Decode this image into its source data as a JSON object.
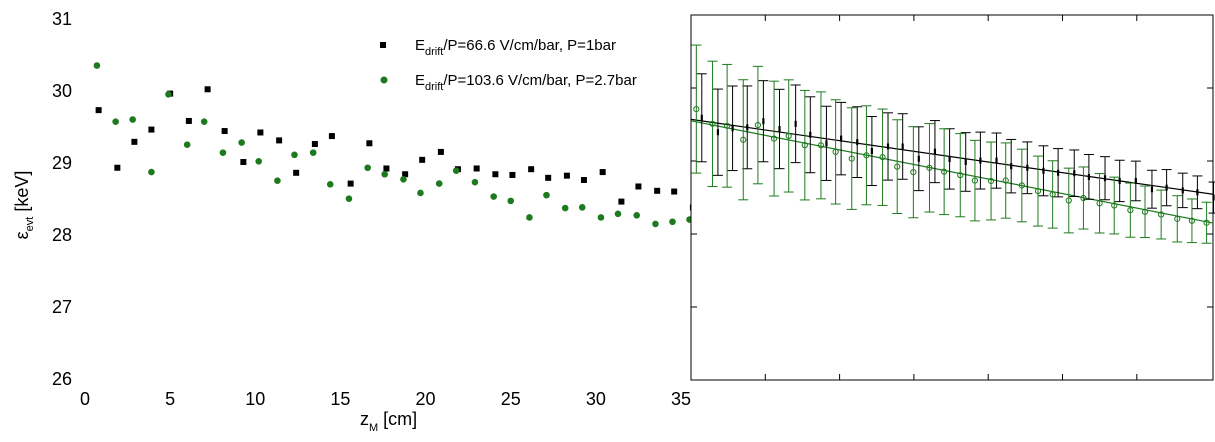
{
  "chart_data": {
    "type": "scatter",
    "title": "",
    "xlabel": {
      "main": "z",
      "sub": "M",
      "unit": " [cm]"
    },
    "ylabel": {
      "main": "ε",
      "sub": "evt",
      "unit": " [keV]"
    },
    "xlim": [
      0,
      35
    ],
    "ylim": [
      26,
      31
    ],
    "x_ticks": [
      "0",
      "5",
      "10",
      "15",
      "20",
      "25",
      "30",
      "35"
    ],
    "y_ticks": [
      "26",
      "27",
      "28",
      "29",
      "30",
      "31"
    ],
    "legend_position": "top-center",
    "colors": {
      "series1": "#000000",
      "series2": "#1e7a1e"
    },
    "legend": [
      {
        "pre": "E",
        "sub": "drift",
        "post": "/P=66.6 V/cm/bar,   P=1bar",
        "marker": "square",
        "color": "#000000"
      },
      {
        "pre": "E",
        "sub": "drift",
        "post": "/P=103.6 V/cm/bar, P=2.7bar",
        "marker": "circle",
        "color": "#1e7a1e"
      }
    ],
    "series": [
      {
        "marker": "square",
        "x": [
          0.8,
          1.9,
          2.9,
          3.9,
          5.0,
          6.1,
          7.2,
          8.2,
          9.3,
          10.3,
          11.4,
          12.4,
          13.5,
          14.5,
          15.6,
          16.7,
          17.7,
          18.8,
          19.8,
          20.9,
          21.9,
          23.0,
          24.1,
          25.1,
          26.2,
          27.2,
          28.3,
          29.3,
          30.4,
          31.5,
          32.5,
          33.6,
          34.6,
          35.7
        ],
        "y": [
          29.72,
          28.92,
          29.28,
          29.45,
          29.95,
          29.57,
          30.01,
          29.43,
          29.0,
          29.41,
          29.3,
          28.85,
          29.25,
          29.36,
          28.7,
          29.26,
          28.91,
          28.83,
          29.03,
          29.14,
          28.9,
          28.91,
          28.83,
          28.82,
          28.9,
          28.78,
          28.81,
          28.75,
          28.86,
          28.45,
          28.66,
          28.6,
          28.59,
          28.37
        ]
      },
      {
        "marker": "circle",
        "x": [
          0.7,
          1.8,
          2.8,
          3.9,
          4.9,
          6.0,
          7.0,
          8.1,
          9.2,
          10.2,
          11.3,
          12.3,
          13.4,
          14.4,
          15.5,
          16.6,
          17.6,
          18.7,
          19.7,
          20.8,
          21.8,
          22.9,
          24.0,
          25.0,
          26.1,
          27.1,
          28.2,
          29.2,
          30.3,
          31.3,
          32.4,
          33.5,
          34.5,
          35.5
        ],
        "y": [
          30.34,
          29.56,
          29.59,
          28.86,
          29.94,
          29.24,
          29.56,
          29.13,
          29.27,
          29.01,
          28.74,
          29.1,
          29.13,
          28.69,
          28.49,
          28.92,
          28.83,
          28.76,
          28.57,
          28.7,
          28.88,
          28.72,
          28.52,
          28.46,
          28.23,
          28.54,
          28.36,
          28.37,
          28.23,
          28.28,
          28.26,
          28.14,
          28.17,
          28.2
        ]
      }
    ]
  }
}
